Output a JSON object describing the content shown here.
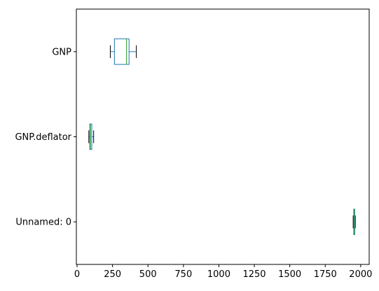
{
  "chart_data": {
    "type": "boxplot",
    "orientation": "horizontal",
    "title": "",
    "xlabel": "",
    "ylabel": "",
    "xlim": [
      -5,
      2060
    ],
    "xticks": [
      0,
      250,
      500,
      750,
      1000,
      1250,
      1500,
      1750,
      2000
    ],
    "grid": false,
    "colors": {
      "box": "#1f77b4",
      "median": "#2ca02c",
      "whisker": "#000000",
      "axes": "#000000"
    },
    "series": [
      {
        "name": "GNP",
        "whislo": 234.289,
        "q1": 263.4,
        "median": 348.0,
        "q3": 366.5,
        "whishi": 418.0
      },
      {
        "name": "GNP.deflator",
        "whislo": 83.0,
        "q1": 89.5,
        "median": 95.0,
        "q3": 104.0,
        "whishi": 116.9
      },
      {
        "name": "Unnamed: 0",
        "whislo": 1947,
        "q1": 1951,
        "median": 1954.5,
        "q3": 1958,
        "whishi": 1962
      }
    ]
  }
}
